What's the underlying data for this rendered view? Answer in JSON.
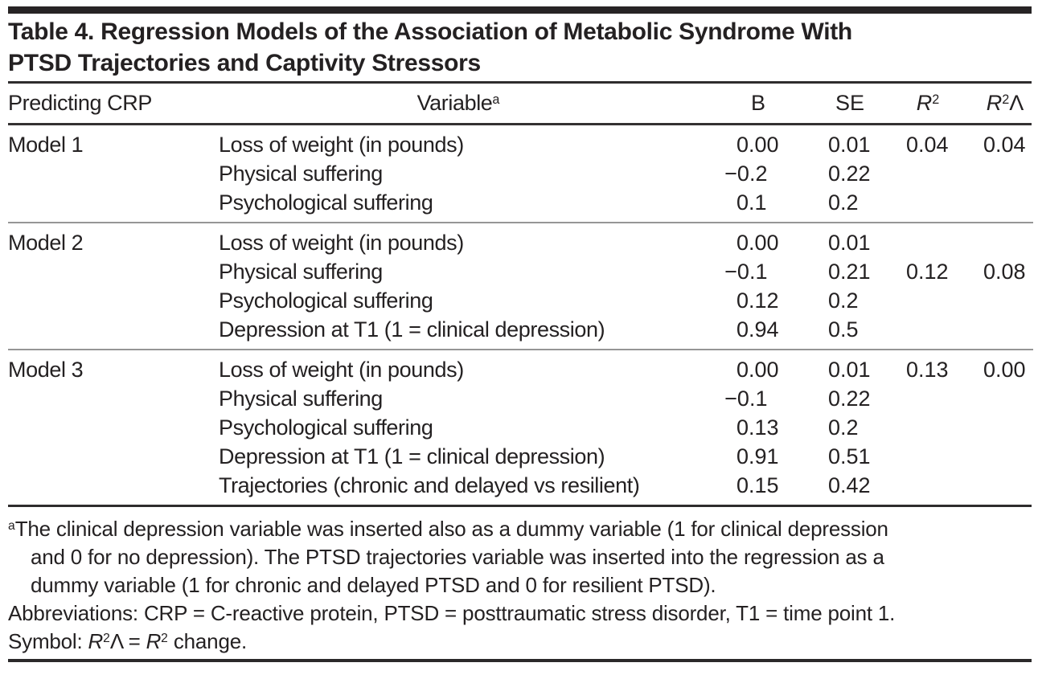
{
  "title": {
    "line1": "Table 4. Regression Models of the Association of Metabolic Syndrome With",
    "line2": "PTSD Trajectories and Captivity Stressors"
  },
  "table": {
    "header": {
      "model": "Predicting CRP",
      "variable": "Variable",
      "variable_note": "a",
      "b": "B",
      "se": "SE",
      "r2_base": "R",
      "r2_sup": "2",
      "r2d_base": "R",
      "r2d_sup": "2",
      "r2d_suffix": "Λ"
    },
    "sections": [
      {
        "model": "Model 1",
        "rows": [
          {
            "variable": "Loss of weight (in pounds)",
            "b": "0.00",
            "se": "0.01",
            "r2": "0.04",
            "r2d": "0.04"
          },
          {
            "variable": "Physical suffering",
            "b": "−0.2",
            "se": "0.22"
          },
          {
            "variable": "Psychological suffering",
            "b": "0.1",
            "se": "0.2"
          }
        ]
      },
      {
        "model": "Model 2",
        "rows": [
          {
            "variable": "Loss of weight (in pounds)",
            "b": "0.00",
            "se": "0.01"
          },
          {
            "variable": "Physical suffering",
            "b": "−0.1",
            "se": "0.21",
            "r2": "0.12",
            "r2d": "0.08"
          },
          {
            "variable": "Psychological suffering",
            "b": "0.12",
            "se": "0.2"
          },
          {
            "variable": "Depression at T1 (1 = clinical depression)",
            "b": "0.94",
            "se": "0.5"
          }
        ]
      },
      {
        "model": "Model 3",
        "rows": [
          {
            "variable": "Loss of weight (in pounds)",
            "b": "0.00",
            "se": "0.01",
            "r2": "0.13",
            "r2d": "0.00"
          },
          {
            "variable": "Physical suffering",
            "b": "−0.1",
            "se": "0.22"
          },
          {
            "variable": "Psychological suffering",
            "b": "0.13",
            "se": "0.2"
          },
          {
            "variable": "Depression at T1 (1 = clinical depression)",
            "b": "0.91",
            "se": "0.51"
          },
          {
            "variable": "Trajectories (chronic and delayed vs resilient)",
            "b": "0.15",
            "se": "0.42"
          }
        ]
      }
    ]
  },
  "footnotes": {
    "note_a_marker": "a",
    "note_a_lines": [
      "The clinical depression variable was inserted also as a dummy variable (1 for clinical depression",
      "and 0 for no depression). The PTSD trajectories variable was inserted into the regression as a",
      "dummy variable (1 for chronic and delayed PTSD and 0 for resilient PTSD)."
    ],
    "abbreviations": "Abbreviations: CRP = C-reactive protein, PTSD = posttraumatic stress disorder, T1 = time point 1.",
    "symbol_prefix": "Symbol: ",
    "symbol_r1_base": "R",
    "symbol_r1_sup": "2",
    "symbol_lambda": "Λ",
    "symbol_equals": " = ",
    "symbol_r2_base": "R",
    "symbol_r2_sup": "2",
    "symbol_suffix": " change."
  },
  "colors": {
    "text": "#242122",
    "rule_dark": "#2e2c2d",
    "rule_light": "#969696",
    "top_bar": "#272425"
  }
}
